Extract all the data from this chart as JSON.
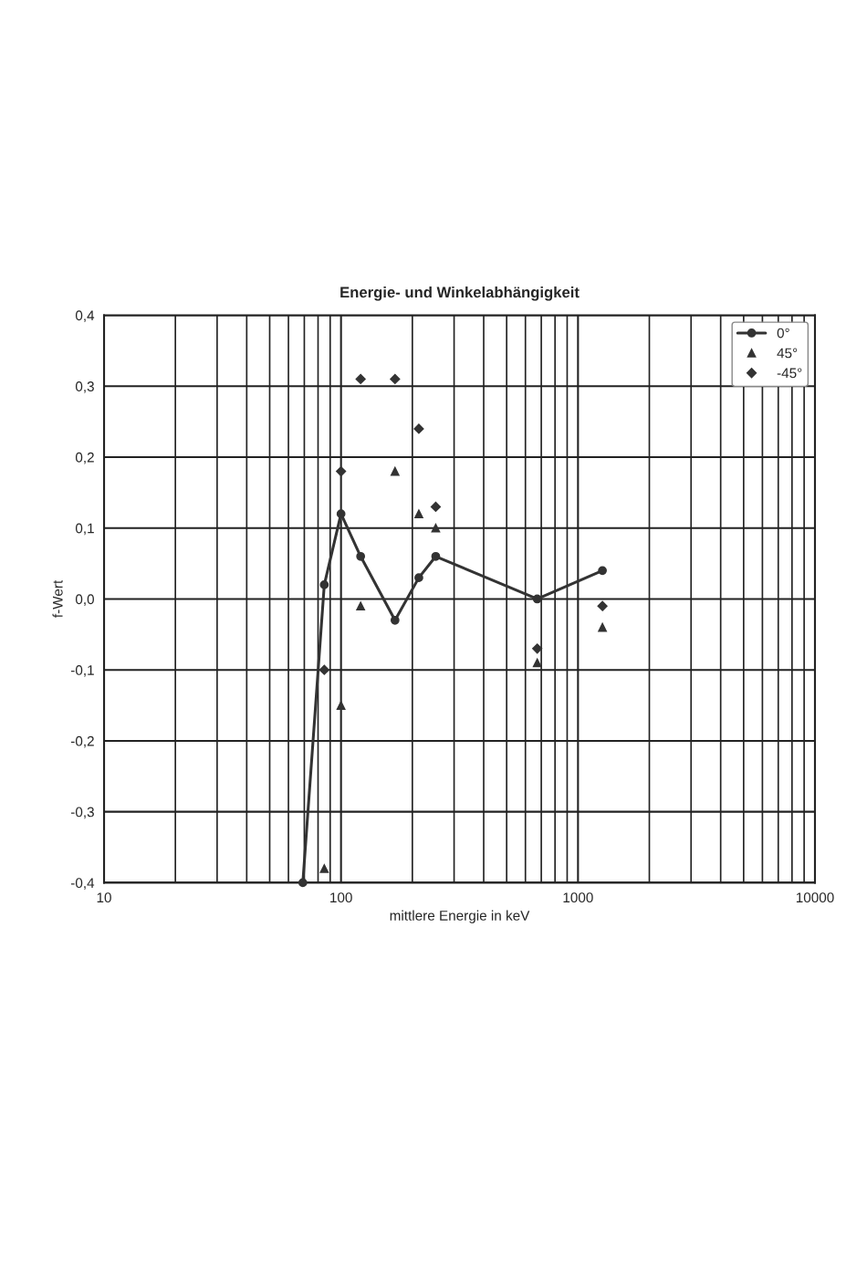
{
  "chart_data": {
    "type": "line",
    "title": "Energie- und Winkelabhängigkeit",
    "xlabel": "mittlere Energie in keV",
    "ylabel": "f-Wert",
    "log": "x",
    "grid": true,
    "legend": "top right",
    "xlim": [
      10,
      10000
    ],
    "xticks": [
      10,
      100,
      1000,
      10000
    ],
    "ylim": [
      -0.4,
      0.4
    ],
    "yticks": [
      {
        "value": -0.4,
        "label": "-0,4"
      },
      {
        "value": -0.3,
        "label": "-0,3"
      },
      {
        "value": -0.2,
        "label": "-0,2"
      },
      {
        "value": -0.1,
        "label": "-0,1"
      },
      {
        "value": 0,
        "label": "0,0"
      },
      {
        "value": 0.1,
        "label": "0,1"
      },
      {
        "value": 0.2,
        "label": "0,2"
      },
      {
        "value": 0.3,
        "label": "0,3"
      },
      {
        "value": 0.4,
        "label": "0,4"
      }
    ],
    "series": [
      {
        "name": "0°",
        "marker": "circle",
        "color": "#333333",
        "x": [
          69,
          85,
          100,
          121,
          169,
          213,
          251,
          673,
          1268
        ],
        "values": [
          -0.4,
          0.02,
          0.12,
          0.06,
          -0.03,
          0.03,
          0.06,
          0.0,
          0.04
        ]
      },
      {
        "name": "45°",
        "type": "scatter",
        "marker": "triangle",
        "color": "#333333",
        "x": [
          85,
          100,
          121,
          169,
          213,
          251,
          673,
          1268
        ],
        "values": [
          -0.38,
          -0.15,
          -0.01,
          0.18,
          0.12,
          0.1,
          -0.09,
          -0.04
        ]
      },
      {
        "name": "-45°",
        "type": "scatter",
        "marker": "diamond",
        "color": "#333333",
        "x": [
          85,
          100,
          121,
          169,
          213,
          251,
          673,
          1268
        ],
        "values": [
          -0.1,
          0.18,
          0.31,
          0.31,
          0.24,
          0.13,
          -0.07,
          -0.01
        ]
      }
    ]
  }
}
